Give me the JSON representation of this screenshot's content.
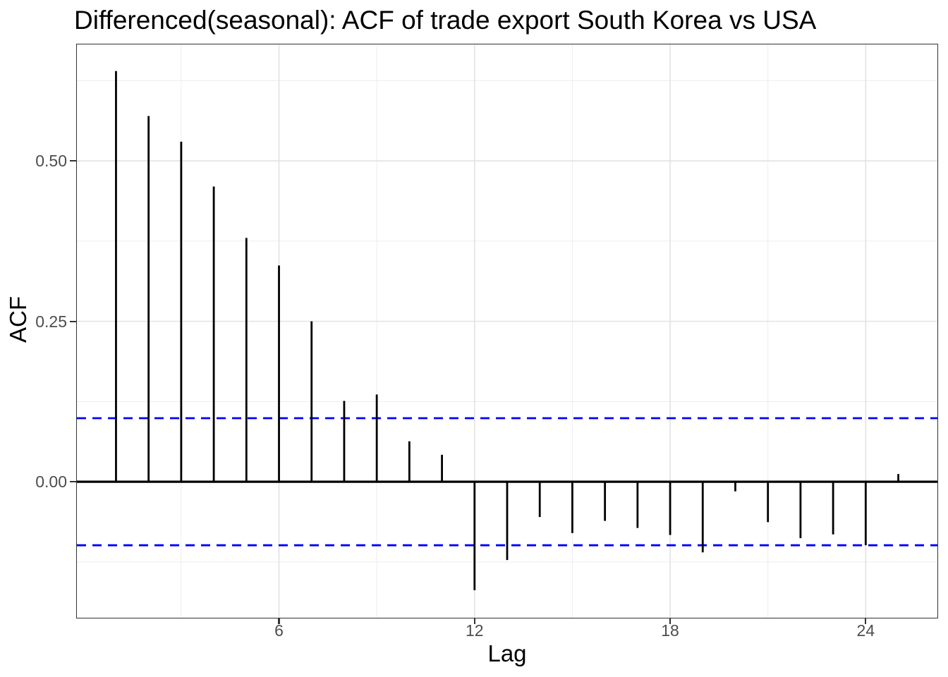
{
  "figure": {
    "background": "#ffffff"
  },
  "chart_data": {
    "type": "bar",
    "subtype": "acf-stem-plot",
    "title": "Differenced(seasonal): ACF of trade export South Korea vs USA",
    "xlabel": "Lag",
    "ylabel": "ACF",
    "x": [
      1,
      2,
      3,
      4,
      5,
      6,
      7,
      8,
      9,
      10,
      11,
      12,
      13,
      14,
      15,
      16,
      17,
      18,
      19,
      20,
      21,
      22,
      23,
      24,
      25
    ],
    "values": [
      0.64,
      0.57,
      0.53,
      0.46,
      0.38,
      0.337,
      0.25,
      0.126,
      0.136,
      0.063,
      0.042,
      -0.169,
      -0.122,
      -0.055,
      -0.08,
      -0.061,
      -0.072,
      -0.083,
      -0.11,
      -0.015,
      -0.063,
      -0.088,
      -0.082,
      -0.099,
      0.012
    ],
    "confidence_band": 0.099,
    "xlim": [
      -0.2,
      26.2
    ],
    "ylim": [
      -0.212,
      0.6815
    ],
    "x_ticks": [
      {
        "v": 6,
        "label": "6"
      },
      {
        "v": 12,
        "label": "12"
      },
      {
        "v": 18,
        "label": "18"
      },
      {
        "v": 24,
        "label": "24"
      }
    ],
    "y_ticks": [
      {
        "v": 0,
        "label": "0.00"
      },
      {
        "v": 0.25,
        "label": "0.25"
      },
      {
        "v": 0.5,
        "label": "0.50"
      }
    ],
    "x_minor_gridlines": [
      3,
      9,
      15,
      21
    ],
    "y_minor_gridlines": [
      -0.125,
      0.125,
      0.375,
      0.625
    ],
    "colors": {
      "bar": "#000000",
      "zero_line": "#000000",
      "confidence_line": "#0000FF",
      "grid_major": "#E2E2E2",
      "grid_minor": "#EDEDED",
      "tick_text": "#4d4d4d",
      "axis_text": "#000000"
    },
    "legend": "none",
    "grid": "on"
  }
}
